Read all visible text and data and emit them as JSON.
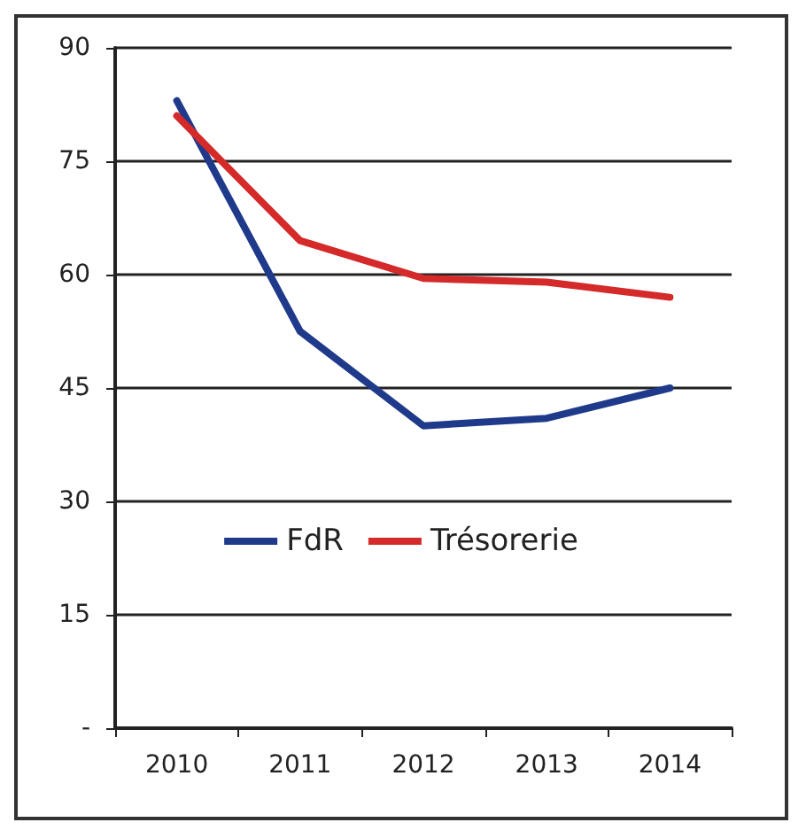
{
  "chart_data": {
    "type": "line",
    "categories": [
      "2010",
      "2011",
      "2012",
      "2013",
      "2014"
    ],
    "series": [
      {
        "name": "FdR",
        "color": "#1f3a8a",
        "values": [
          83,
          52.5,
          40,
          41,
          45
        ]
      },
      {
        "name": "Trésorerie",
        "color": "#d42a2a",
        "values": [
          81,
          64.5,
          59.5,
          59,
          57
        ]
      }
    ],
    "ylim": [
      0,
      90
    ],
    "yticks": [
      {
        "value": 0,
        "label": "-"
      },
      15,
      30,
      45,
      60,
      75,
      90
    ],
    "grid": "y",
    "legend": "center",
    "marker": "none",
    "line_style": "solid"
  }
}
